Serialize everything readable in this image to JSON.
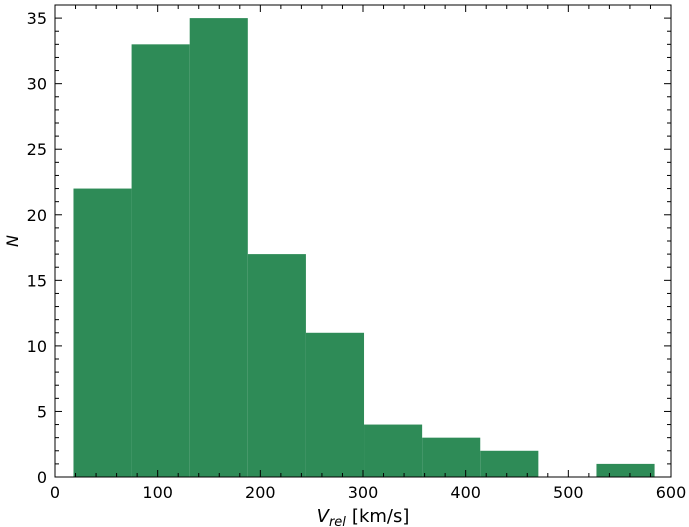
{
  "chart_data": {
    "type": "histogram",
    "xlabel": [
      "V",
      "rel",
      "[km/s]"
    ],
    "ylabel": "N",
    "bins": [
      18,
      74.6,
      131.2,
      187.8,
      244.4,
      301,
      357.6,
      414.2,
      470.8,
      527.4,
      584
    ],
    "values": [
      22,
      33,
      35,
      17,
      11,
      4,
      3,
      2,
      0,
      1
    ],
    "color": "#2e8b57",
    "xlim": [
      0,
      600
    ],
    "xticks": [
      0,
      100,
      200,
      300,
      400,
      500,
      600
    ],
    "ylim": [
      0,
      36
    ],
    "yticks": [
      0,
      5,
      10,
      15,
      20,
      25,
      30,
      35
    ],
    "minor_ticks": true,
    "tick_direction": "in"
  }
}
